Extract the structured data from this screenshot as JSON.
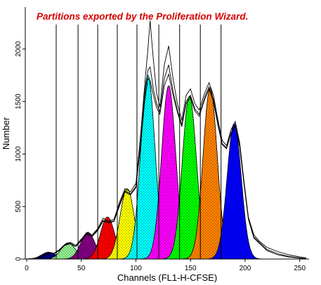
{
  "chart_data": {
    "type": "area",
    "title": "Partitions exported by the Proliferation Wizard.",
    "xlabel": "Channels (FL1-H-CFSE)",
    "ylabel": "Number",
    "xlim": [
      0,
      256
    ],
    "ylim": [
      0,
      2400
    ],
    "x_ticks": [
      0,
      50,
      100,
      150,
      200,
      250
    ],
    "y_ticks": [
      0,
      500,
      1000,
      1500,
      2000
    ],
    "partition_boundaries": [
      27,
      47,
      65,
      83,
      101,
      121,
      140,
      159,
      178
    ],
    "partitions": [
      {
        "center": 20,
        "height": 65,
        "sigma": 6.5,
        "color": "#000080"
      },
      {
        "center": 38,
        "height": 155,
        "sigma": 6.5,
        "color": "#90ee90"
      },
      {
        "center": 56,
        "height": 255,
        "sigma": 6.5,
        "color": "#800080"
      },
      {
        "center": 74,
        "height": 400,
        "sigma": 6.5,
        "color": "#ff0000"
      },
      {
        "center": 92,
        "height": 670,
        "sigma": 6.5,
        "color": "#ffff00"
      },
      {
        "center": 111,
        "height": 1750,
        "sigma": 6.5,
        "color": "#00ffff"
      },
      {
        "center": 130,
        "height": 1650,
        "sigma": 6.5,
        "color": "#ff00ff"
      },
      {
        "center": 149,
        "height": 1550,
        "sigma": 6.5,
        "color": "#00ff00"
      },
      {
        "center": 168,
        "height": 1630,
        "sigma": 6.5,
        "color": "#ff8000"
      },
      {
        "center": 190,
        "height": 1290,
        "sigma": 6.5,
        "color": "#0000ff"
      }
    ],
    "histogram_outlines": [
      {
        "points": [
          [
            0,
            0
          ],
          [
            5,
            4
          ],
          [
            10,
            15
          ],
          [
            15,
            35
          ],
          [
            20,
            65
          ],
          [
            25,
            55
          ],
          [
            30,
            90
          ],
          [
            35,
            140
          ],
          [
            40,
            160
          ],
          [
            45,
            130
          ],
          [
            50,
            190
          ],
          [
            55,
            250
          ],
          [
            60,
            230
          ],
          [
            65,
            290
          ],
          [
            70,
            390
          ],
          [
            75,
            360
          ],
          [
            80,
            380
          ],
          [
            85,
            540
          ],
          [
            90,
            670
          ],
          [
            95,
            640
          ],
          [
            100,
            720
          ],
          [
            104,
            1150
          ],
          [
            108,
            1650
          ],
          [
            111,
            2000
          ],
          [
            113,
            2270
          ],
          [
            116,
            1900
          ],
          [
            119,
            1580
          ],
          [
            122,
            1450
          ],
          [
            126,
            1850
          ],
          [
            130,
            2030
          ],
          [
            134,
            1720
          ],
          [
            138,
            1480
          ],
          [
            142,
            1320
          ],
          [
            146,
            1560
          ],
          [
            150,
            1620
          ],
          [
            154,
            1480
          ],
          [
            158,
            1420
          ],
          [
            163,
            1580
          ],
          [
            167,
            1680
          ],
          [
            171,
            1560
          ],
          [
            175,
            1330
          ],
          [
            179,
            1130
          ],
          [
            183,
            1080
          ],
          [
            187,
            1230
          ],
          [
            191,
            1310
          ],
          [
            195,
            1110
          ],
          [
            199,
            740
          ],
          [
            203,
            400
          ],
          [
            208,
            230
          ],
          [
            213,
            170
          ],
          [
            220,
            110
          ],
          [
            230,
            70
          ],
          [
            240,
            40
          ],
          [
            250,
            20
          ],
          [
            256,
            10
          ]
        ]
      },
      {
        "points": [
          [
            0,
            0
          ],
          [
            5,
            3
          ],
          [
            10,
            12
          ],
          [
            15,
            30
          ],
          [
            20,
            60
          ],
          [
            25,
            50
          ],
          [
            30,
            85
          ],
          [
            35,
            135
          ],
          [
            40,
            150
          ],
          [
            45,
            120
          ],
          [
            50,
            180
          ],
          [
            55,
            240
          ],
          [
            60,
            220
          ],
          [
            65,
            280
          ],
          [
            70,
            370
          ],
          [
            75,
            350
          ],
          [
            80,
            365
          ],
          [
            85,
            520
          ],
          [
            90,
            650
          ],
          [
            95,
            620
          ],
          [
            100,
            690
          ],
          [
            104,
            1080
          ],
          [
            108,
            1550
          ],
          [
            111,
            1800
          ],
          [
            113,
            1830
          ],
          [
            116,
            1620
          ],
          [
            119,
            1480
          ],
          [
            122,
            1400
          ],
          [
            126,
            1720
          ],
          [
            130,
            1850
          ],
          [
            134,
            1600
          ],
          [
            138,
            1420
          ],
          [
            142,
            1280
          ],
          [
            146,
            1500
          ],
          [
            150,
            1560
          ],
          [
            154,
            1430
          ],
          [
            158,
            1380
          ],
          [
            163,
            1540
          ],
          [
            167,
            1640
          ],
          [
            171,
            1520
          ],
          [
            175,
            1300
          ],
          [
            179,
            1100
          ],
          [
            183,
            1060
          ],
          [
            187,
            1200
          ],
          [
            191,
            1280
          ],
          [
            195,
            1080
          ],
          [
            199,
            720
          ],
          [
            203,
            390
          ],
          [
            208,
            210
          ],
          [
            213,
            160
          ],
          [
            220,
            90
          ],
          [
            230,
            50
          ],
          [
            240,
            25
          ],
          [
            250,
            10
          ],
          [
            256,
            5
          ]
        ]
      },
      {
        "points": [
          [
            0,
            0
          ],
          [
            5,
            2
          ],
          [
            10,
            10
          ],
          [
            15,
            28
          ],
          [
            20,
            58
          ],
          [
            25,
            48
          ],
          [
            30,
            82
          ],
          [
            35,
            130
          ],
          [
            40,
            145
          ],
          [
            45,
            118
          ],
          [
            50,
            175
          ],
          [
            55,
            235
          ],
          [
            60,
            215
          ],
          [
            65,
            272
          ],
          [
            70,
            360
          ],
          [
            75,
            342
          ],
          [
            80,
            358
          ],
          [
            85,
            505
          ],
          [
            90,
            640
          ],
          [
            95,
            610
          ],
          [
            100,
            680
          ],
          [
            104,
            1050
          ],
          [
            108,
            1500
          ],
          [
            111,
            1720
          ],
          [
            113,
            1700
          ],
          [
            116,
            1560
          ],
          [
            119,
            1440
          ],
          [
            122,
            1380
          ],
          [
            126,
            1650
          ],
          [
            130,
            1760
          ],
          [
            134,
            1560
          ],
          [
            138,
            1400
          ],
          [
            142,
            1260
          ],
          [
            146,
            1480
          ],
          [
            150,
            1540
          ],
          [
            154,
            1410
          ],
          [
            158,
            1360
          ],
          [
            163,
            1520
          ],
          [
            167,
            1620
          ],
          [
            171,
            1500
          ],
          [
            175,
            1280
          ],
          [
            179,
            1090
          ],
          [
            183,
            1050
          ],
          [
            187,
            1190
          ],
          [
            191,
            1270
          ],
          [
            195,
            1070
          ],
          [
            199,
            710
          ],
          [
            203,
            380
          ],
          [
            208,
            200
          ],
          [
            213,
            150
          ],
          [
            220,
            80
          ],
          [
            230,
            40
          ],
          [
            240,
            20
          ],
          [
            250,
            8
          ],
          [
            256,
            4
          ]
        ]
      }
    ],
    "grid": false,
    "legend": "none"
  }
}
